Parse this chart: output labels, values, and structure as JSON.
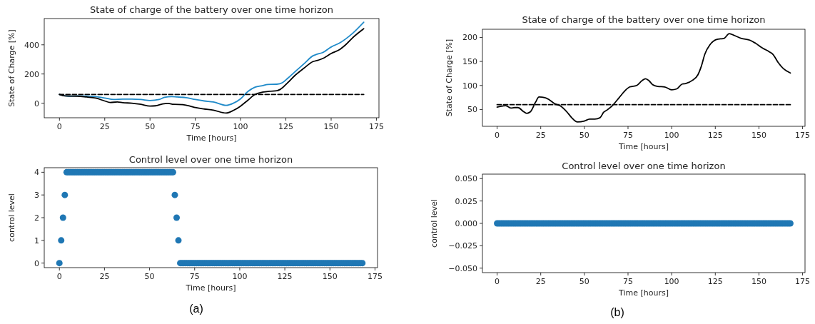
{
  "chart_data": [
    {
      "type": "line",
      "title": "State of charge of the battery over one time horizon",
      "xlabel": "Time [hours]",
      "ylabel": "State of Charge [%]",
      "xlim": [
        -8.4,
        176.4
      ],
      "xticks": [
        0,
        25,
        50,
        75,
        100,
        125,
        150,
        175
      ],
      "ylim": [
        -100,
        580
      ],
      "yticks": [
        0,
        200,
        400
      ],
      "series": [
        {
          "color": "#1f8ac9",
          "x": [
            0,
            5,
            10,
            20,
            25,
            30,
            35,
            40,
            45,
            50,
            55,
            58,
            62,
            65,
            70,
            75,
            80,
            85,
            92,
            96,
            100,
            104,
            108,
            112,
            115,
            120,
            123,
            126,
            130,
            135,
            140,
            142,
            145,
            150,
            155,
            158,
            162,
            168
          ],
          "values": [
            60,
            48,
            50,
            45,
            35,
            25,
            28,
            28,
            25,
            18,
            25,
            40,
            45,
            42,
            38,
            25,
            15,
            8,
            -15,
            0,
            30,
            80,
            110,
            120,
            128,
            130,
            140,
            170,
            215,
            270,
            325,
            335,
            345,
            385,
            415,
            440,
            480,
            555
          ]
        },
        {
          "color": "#000000",
          "x": [
            0,
            3,
            10,
            15,
            20,
            25,
            28,
            32,
            35,
            40,
            45,
            50,
            53,
            57,
            60,
            63,
            68,
            72,
            75,
            80,
            85,
            92,
            96,
            100,
            104,
            108,
            112,
            116,
            120,
            122,
            126,
            130,
            135,
            140,
            143,
            146,
            150,
            155,
            158,
            162,
            168
          ],
          "values": [
            60,
            50,
            48,
            42,
            35,
            15,
            5,
            8,
            3,
            0,
            -8,
            -20,
            -18,
            -5,
            -2,
            -8,
            -10,
            -20,
            -30,
            -40,
            -48,
            -68,
            -50,
            -20,
            20,
            60,
            75,
            82,
            85,
            95,
            140,
            190,
            240,
            285,
            295,
            310,
            340,
            370,
            400,
            450,
            510
          ]
        },
        {
          "color": "#000000",
          "line_style": "dashed",
          "x": [
            0,
            168
          ],
          "values": [
            60,
            60
          ]
        }
      ]
    },
    {
      "type": "scatter",
      "title": "Control level over one time horizon",
      "xlabel": "Time [hours]",
      "ylabel": "control level",
      "marker": "circle",
      "annotations": [
        "(a)"
      ],
      "xlim": [
        -8.4,
        176.4
      ],
      "xticks": [
        0,
        25,
        50,
        75,
        100,
        125,
        150,
        175
      ],
      "ylim": [
        -0.2,
        4.2
      ],
      "yticks": [
        0,
        1,
        2,
        3,
        4
      ],
      "series": [
        {
          "color": "#1f77b4",
          "x": [
            0,
            1,
            2,
            3,
            4,
            5,
            6,
            7,
            8,
            9,
            10,
            11,
            12,
            13,
            14,
            15,
            16,
            17,
            18,
            19,
            20,
            21,
            22,
            23,
            24,
            25,
            26,
            27,
            28,
            29,
            30,
            31,
            32,
            33,
            34,
            35,
            36,
            37,
            38,
            39,
            40,
            41,
            42,
            43,
            44,
            45,
            46,
            47,
            48,
            49,
            50,
            51,
            52,
            53,
            54,
            55,
            56,
            57,
            58,
            59,
            60,
            61,
            62,
            63,
            64,
            65,
            66,
            67,
            68,
            69,
            70,
            71,
            72,
            73,
            74,
            75,
            76,
            77,
            78,
            79,
            80,
            81,
            82,
            83,
            84,
            85,
            86,
            87,
            88,
            89,
            90,
            91,
            92,
            93,
            94,
            95,
            96,
            97,
            98,
            99,
            100,
            101,
            102,
            103,
            104,
            105,
            106,
            107,
            108,
            109,
            110,
            111,
            112,
            113,
            114,
            115,
            116,
            117,
            118,
            119,
            120,
            121,
            122,
            123,
            124,
            125,
            126,
            127,
            128,
            129,
            130,
            131,
            132,
            133,
            134,
            135,
            136,
            137,
            138,
            139,
            140,
            141,
            142,
            143,
            144,
            145,
            146,
            147,
            148,
            149,
            150,
            151,
            152,
            153,
            154,
            155,
            156,
            157,
            158,
            159,
            160,
            161,
            162,
            163,
            164,
            165,
            166,
            167,
            168
          ],
          "values": [
            0,
            1,
            2,
            3,
            4,
            4,
            4,
            4,
            4,
            4,
            4,
            4,
            4,
            4,
            4,
            4,
            4,
            4,
            4,
            4,
            4,
            4,
            4,
            4,
            4,
            4,
            4,
            4,
            4,
            4,
            4,
            4,
            4,
            4,
            4,
            4,
            4,
            4,
            4,
            4,
            4,
            4,
            4,
            4,
            4,
            4,
            4,
            4,
            4,
            4,
            4,
            4,
            4,
            4,
            4,
            4,
            4,
            4,
            4,
            4,
            4,
            4,
            4,
            4,
            3,
            2,
            1,
            0,
            0,
            0,
            0,
            0,
            0,
            0,
            0,
            0,
            0,
            0,
            0,
            0,
            0,
            0,
            0,
            0,
            0,
            0,
            0,
            0,
            0,
            0,
            0,
            0,
            0,
            0,
            0,
            0,
            0,
            0,
            0,
            0,
            0,
            0,
            0,
            0,
            0,
            0,
            0,
            0,
            0,
            0,
            0,
            0,
            0,
            0,
            0,
            0,
            0,
            0,
            0,
            0,
            0,
            0,
            0,
            0,
            0,
            0,
            0,
            0,
            0,
            0,
            0,
            0,
            0,
            0,
            0,
            0,
            0,
            0,
            0,
            0,
            0,
            0,
            0,
            0,
            0,
            0,
            0,
            0,
            0,
            0,
            0,
            0,
            0,
            0,
            0,
            0,
            0,
            0,
            0,
            0,
            0,
            0,
            0,
            0,
            0,
            0,
            0,
            0,
            0
          ]
        }
      ]
    },
    {
      "type": "line",
      "title": "State of charge of the battery over one time horizon",
      "xlabel": "Time [hours]",
      "ylabel": "State of Charge [%]",
      "xlim": [
        -8.4,
        176.4
      ],
      "xticks": [
        0,
        25,
        50,
        75,
        100,
        125,
        150,
        175
      ],
      "ylim": [
        15,
        217
      ],
      "yticks": [
        50,
        100,
        150,
        200
      ],
      "series": [
        {
          "color": "#000000",
          "x": [
            0,
            3,
            5,
            8,
            10,
            12,
            15,
            17,
            19,
            22,
            24,
            28,
            30,
            33,
            36,
            40,
            43,
            46,
            50,
            53,
            56,
            59,
            61,
            63,
            66,
            70,
            73,
            76,
            80,
            83,
            85,
            87,
            89,
            92,
            96,
            100,
            103,
            106,
            108,
            112,
            115,
            117,
            119,
            122,
            126,
            128,
            130,
            133,
            136,
            140,
            145,
            148,
            152,
            156,
            158,
            161,
            164,
            168
          ],
          "values": [
            55,
            57,
            58,
            53,
            54,
            54,
            46,
            42,
            45,
            65,
            76,
            74,
            70,
            62,
            58,
            45,
            32,
            24,
            26,
            30,
            30,
            33,
            44,
            49,
            58,
            75,
            88,
            97,
            100,
            110,
            114,
            110,
            102,
            98,
            97,
            91,
            93,
            103,
            104,
            111,
            122,
            140,
            165,
            185,
            196,
            197,
            198,
            208,
            204,
            198,
            194,
            188,
            178,
            170,
            165,
            148,
            135,
            126
          ]
        },
        {
          "color": "#000000",
          "line_style": "dashed",
          "x": [
            0,
            168
          ],
          "values": [
            60,
            60
          ]
        }
      ]
    },
    {
      "type": "scatter",
      "title": "Control level over one time horizon",
      "xlabel": "Time [hours]",
      "ylabel": "control level",
      "marker": "circle",
      "annotations": [
        "(b)"
      ],
      "xlim": [
        -8.4,
        176.4
      ],
      "xticks": [
        0,
        25,
        50,
        75,
        100,
        125,
        150,
        175
      ],
      "ylim": [
        -0.055,
        0.055
      ],
      "yticks": [
        {
          "value": -0.05,
          "label": "−0.050"
        },
        {
          "value": -0.025,
          "label": "−0.025"
        },
        {
          "value": 0,
          "label": "0.000"
        },
        {
          "value": 0.025,
          "label": "0.025"
        },
        {
          "value": 0.05,
          "label": "0.050"
        }
      ],
      "series": [
        {
          "color": "#1f77b4",
          "x": [
            0,
            1,
            2,
            3,
            4,
            5,
            6,
            7,
            8,
            9,
            10,
            11,
            12,
            13,
            14,
            15,
            16,
            17,
            18,
            19,
            20,
            21,
            22,
            23,
            24,
            25,
            26,
            27,
            28,
            29,
            30,
            31,
            32,
            33,
            34,
            35,
            36,
            37,
            38,
            39,
            40,
            41,
            42,
            43,
            44,
            45,
            46,
            47,
            48,
            49,
            50,
            51,
            52,
            53,
            54,
            55,
            56,
            57,
            58,
            59,
            60,
            61,
            62,
            63,
            64,
            65,
            66,
            67,
            68,
            69,
            70,
            71,
            72,
            73,
            74,
            75,
            76,
            77,
            78,
            79,
            80,
            81,
            82,
            83,
            84,
            85,
            86,
            87,
            88,
            89,
            90,
            91,
            92,
            93,
            94,
            95,
            96,
            97,
            98,
            99,
            100,
            101,
            102,
            103,
            104,
            105,
            106,
            107,
            108,
            109,
            110,
            111,
            112,
            113,
            114,
            115,
            116,
            117,
            118,
            119,
            120,
            121,
            122,
            123,
            124,
            125,
            126,
            127,
            128,
            129,
            130,
            131,
            132,
            133,
            134,
            135,
            136,
            137,
            138,
            139,
            140,
            141,
            142,
            143,
            144,
            145,
            146,
            147,
            148,
            149,
            150,
            151,
            152,
            153,
            154,
            155,
            156,
            157,
            158,
            159,
            160,
            161,
            162,
            163,
            164,
            165,
            166,
            167,
            168
          ],
          "values": [
            0,
            0,
            0,
            0,
            0,
            0,
            0,
            0,
            0,
            0,
            0,
            0,
            0,
            0,
            0,
            0,
            0,
            0,
            0,
            0,
            0,
            0,
            0,
            0,
            0,
            0,
            0,
            0,
            0,
            0,
            0,
            0,
            0,
            0,
            0,
            0,
            0,
            0,
            0,
            0,
            0,
            0,
            0,
            0,
            0,
            0,
            0,
            0,
            0,
            0,
            0,
            0,
            0,
            0,
            0,
            0,
            0,
            0,
            0,
            0,
            0,
            0,
            0,
            0,
            0,
            0,
            0,
            0,
            0,
            0,
            0,
            0,
            0,
            0,
            0,
            0,
            0,
            0,
            0,
            0,
            0,
            0,
            0,
            0,
            0,
            0,
            0,
            0,
            0,
            0,
            0,
            0,
            0,
            0,
            0,
            0,
            0,
            0,
            0,
            0,
            0,
            0,
            0,
            0,
            0,
            0,
            0,
            0,
            0,
            0,
            0,
            0,
            0,
            0,
            0,
            0,
            0,
            0,
            0,
            0,
            0,
            0,
            0,
            0,
            0,
            0,
            0,
            0,
            0,
            0,
            0,
            0,
            0,
            0,
            0,
            0,
            0,
            0,
            0,
            0,
            0,
            0,
            0,
            0,
            0,
            0,
            0,
            0,
            0,
            0,
            0,
            0,
            0,
            0,
            0,
            0,
            0,
            0,
            0,
            0,
            0,
            0,
            0,
            0,
            0,
            0,
            0,
            0,
            0
          ]
        }
      ]
    }
  ]
}
